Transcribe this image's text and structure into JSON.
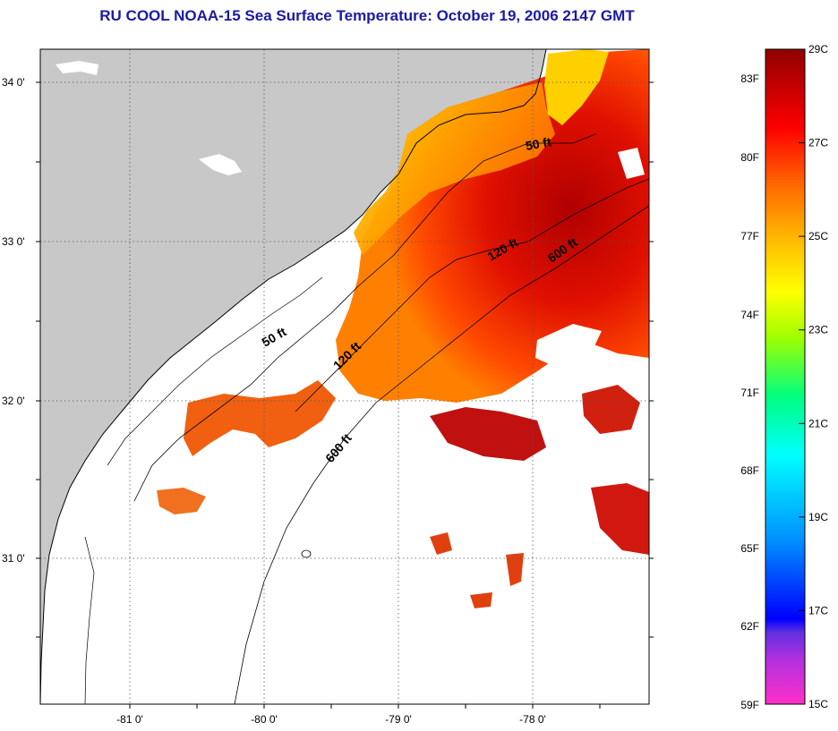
{
  "title": "RU COOL  NOAA-15  Sea Surface Temperature:  October 19, 2006 2147 GMT",
  "map": {
    "lat_labels": [
      "34 0'",
      "33 0'",
      "32 0'",
      "31 0'"
    ],
    "lon_labels": [
      "-81 0'",
      "-80 0'",
      "-79 0'",
      "-78 0'"
    ],
    "lat_values": [
      34,
      33,
      32,
      31
    ],
    "lon_values": [
      -81,
      -80,
      -79,
      -78
    ],
    "lat_range": [
      30.1,
      34.3
    ],
    "lon_range": [
      -81.7,
      -77.1
    ],
    "grid": "dotted",
    "isobath_labels": {
      "ft50_north": "50 ft",
      "ft120_north": "120 ft",
      "ft600_north": "600 ft",
      "ft50_south": "50 ft",
      "ft120_south": "120 ft",
      "ft600_south": "600 ft"
    },
    "colors": {
      "land": "#c8c8c8",
      "cloud": "#ffffff",
      "coast": "#000000"
    }
  },
  "colorbar": {
    "fahrenheit_labels": [
      "83F",
      "80F",
      "77F",
      "74F",
      "71F",
      "68F",
      "65F",
      "62F",
      "59F"
    ],
    "celsius_labels": [
      "29C",
      "27C",
      "25C",
      "23C",
      "21C",
      "19C",
      "17C",
      "15C"
    ],
    "celsius_values": [
      29,
      27,
      25,
      23,
      21,
      19,
      17,
      15
    ],
    "range_c": [
      15,
      29
    ],
    "stops": [
      "#ff30c8",
      "#8030e0",
      "#0000ff",
      "#0090ff",
      "#00ffff",
      "#00ff80",
      "#a0ff00",
      "#ffff00",
      "#ffb000",
      "#ff6000",
      "#ff0000",
      "#a00000"
    ]
  }
}
